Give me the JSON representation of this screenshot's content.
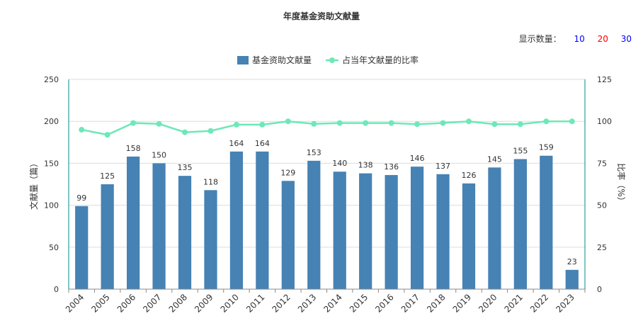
{
  "title": "年度基金资助文献量",
  "display_count": {
    "label": "显示数量：",
    "options": [
      {
        "text": "10",
        "color": "#0000ff"
      },
      {
        "text": "20",
        "color": "#ff0000"
      },
      {
        "text": "30",
        "color": "#0000ff"
      }
    ]
  },
  "colors": {
    "bar": "#4682b4",
    "line": "#6ee8b8",
    "axis": "#008b8b",
    "grid": "#dddddd",
    "text": "#333333"
  },
  "chart_data": {
    "type": "bar+line",
    "categories": [
      "2004",
      "2005",
      "2006",
      "2007",
      "2008",
      "2009",
      "2010",
      "2011",
      "2012",
      "2013",
      "2014",
      "2015",
      "2016",
      "2017",
      "2018",
      "2019",
      "2020",
      "2021",
      "2022",
      "2023"
    ],
    "series": [
      {
        "name": "基金资助文献量",
        "type": "bar",
        "axis": "left",
        "values": [
          99,
          125,
          158,
          150,
          135,
          118,
          164,
          164,
          129,
          153,
          140,
          138,
          136,
          146,
          137,
          126,
          145,
          155,
          159,
          23
        ]
      },
      {
        "name": "占当年文献量的比率",
        "type": "line",
        "axis": "right",
        "values": [
          95,
          92,
          99,
          98.5,
          93.5,
          94.3,
          98,
          98,
          100,
          98.5,
          99,
          99,
          99,
          98.3,
          99,
          100,
          98.3,
          98.3,
          100,
          100
        ]
      }
    ],
    "ylabel_left": "文献量（篇）",
    "ylabel_right": "比率（%）",
    "ylim_left": [
      0,
      250
    ],
    "yticks_left": [
      0,
      50,
      100,
      150,
      200,
      250
    ],
    "ylim_right": [
      0,
      125
    ],
    "yticks_right": [
      0,
      25,
      50,
      75,
      100,
      125
    ],
    "legend_position": "top-center",
    "grid": true
  }
}
